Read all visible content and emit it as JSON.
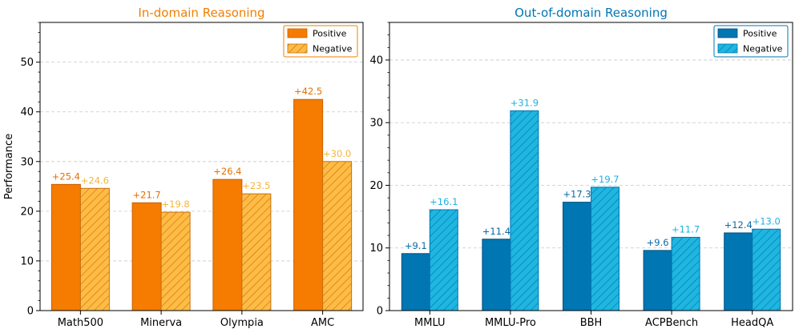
{
  "figure": {
    "ylabel": "Performance"
  },
  "chart_data": [
    {
      "type": "bar",
      "title": "In-domain Reasoning",
      "title_color": "#f07f00",
      "xlabel": "",
      "ylabel": "Performance",
      "categories": [
        "Math500",
        "Minerva",
        "Olympia",
        "AMC"
      ],
      "ylim": [
        0,
        58
      ],
      "yticks": [
        0,
        10,
        20,
        30,
        40,
        50
      ],
      "grid": "horizontal dashed",
      "legend_position": "top-right",
      "series": [
        {
          "name": "Positive",
          "values": [
            25.4,
            21.7,
            26.4,
            42.5
          ],
          "labels": [
            "+25.4",
            "+21.7",
            "+26.4",
            "+42.5"
          ],
          "color": "#f57c00",
          "edge": "#c85f00",
          "hatch": false,
          "label_color": "#e66f00"
        },
        {
          "name": "Negative",
          "values": [
            24.6,
            19.8,
            23.5,
            30.0
          ],
          "labels": [
            "+24.6",
            "+19.8",
            "+23.5",
            "+30.0"
          ],
          "color": "#ffbc45",
          "edge": "#c86f10",
          "hatch": true,
          "label_color": "#f4b63a"
        }
      ]
    },
    {
      "type": "bar",
      "title": "Out-of-domain Reasoning",
      "title_color": "#0076b3",
      "xlabel": "",
      "ylabel": "",
      "categories": [
        "MMLU",
        "MMLU-Pro",
        "BBH",
        "ACPBench",
        "HeadQA"
      ],
      "ylim": [
        0,
        46
      ],
      "yticks": [
        0,
        10,
        20,
        30,
        40
      ],
      "grid": "horizontal dashed",
      "legend_position": "top-right",
      "series": [
        {
          "name": "Positive",
          "values": [
            9.1,
            11.4,
            17.3,
            9.6,
            12.4
          ],
          "labels": [
            "+9.1",
            "+11.4",
            "+17.3",
            "+9.6",
            "+12.4"
          ],
          "color": "#0076b3",
          "edge": "#004f7a",
          "hatch": false,
          "label_color": "#0a6aa6"
        },
        {
          "name": "Negative",
          "values": [
            16.1,
            31.9,
            19.7,
            11.7,
            13.0
          ],
          "labels": [
            "+16.1",
            "+31.9",
            "+19.7",
            "+11.7",
            "+13.0"
          ],
          "color": "#1fb6e0",
          "edge": "#0076b3",
          "hatch": true,
          "label_color": "#20b1dc"
        }
      ]
    }
  ]
}
